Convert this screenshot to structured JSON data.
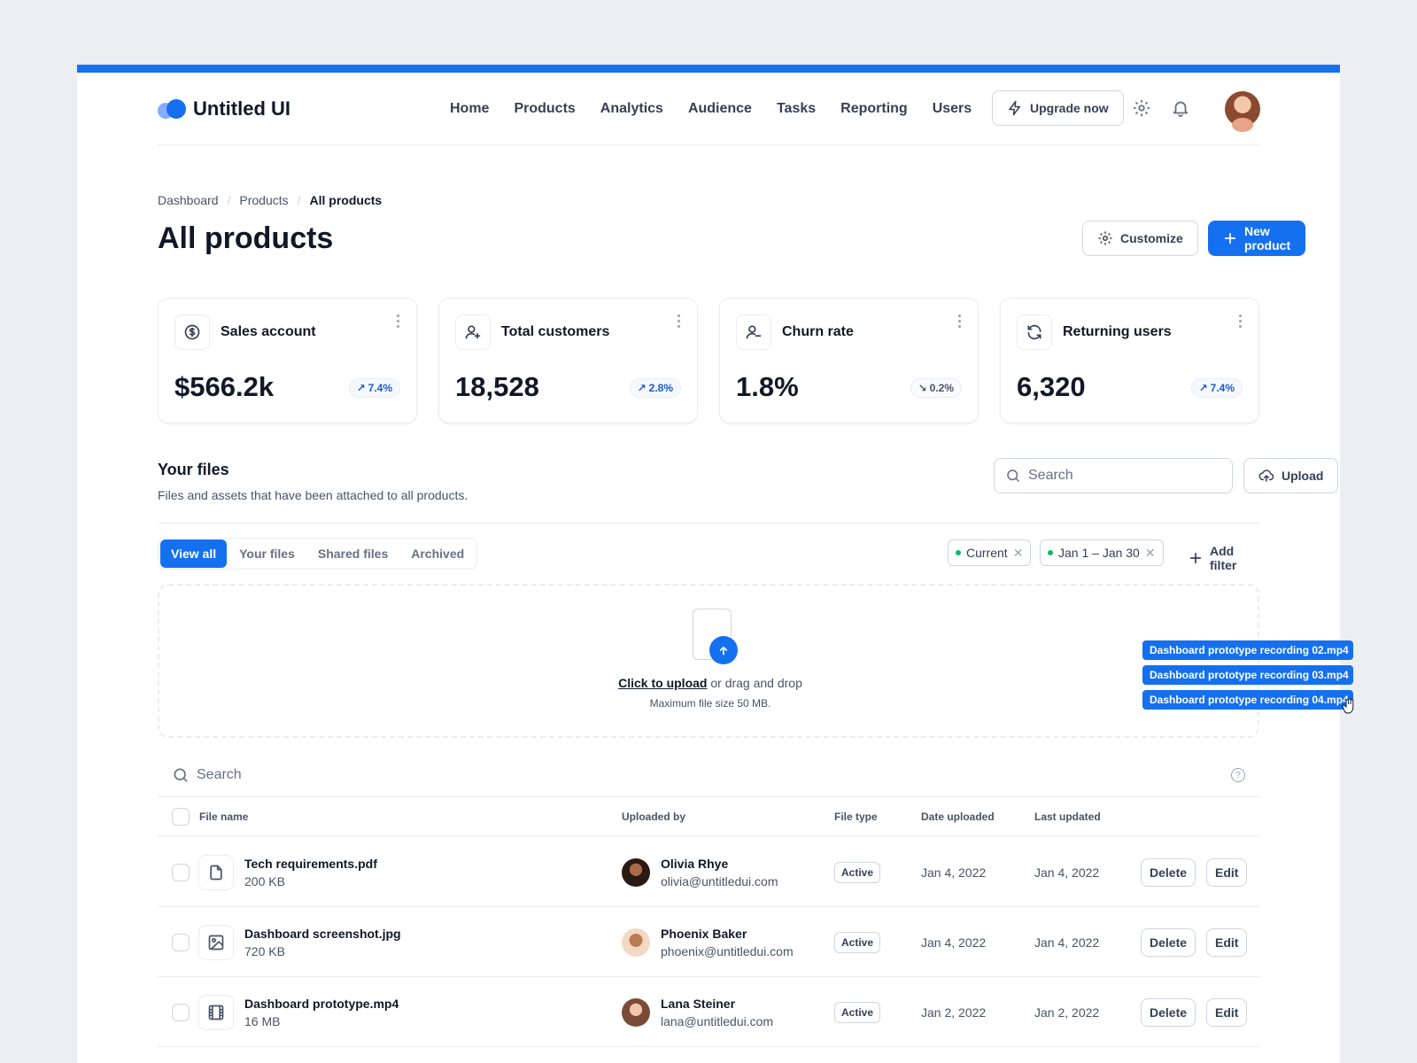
{
  "app": {
    "name": "Untitled UI"
  },
  "nav": {
    "links": [
      "Home",
      "Products",
      "Analytics",
      "Audience",
      "Tasks",
      "Reporting",
      "Users"
    ],
    "upgrade_label": "Upgrade now"
  },
  "breadcrumb": [
    "Dashboard",
    "Products",
    "All products"
  ],
  "page": {
    "title": "All products",
    "customize_label": "Customize",
    "new_product_label": "New product"
  },
  "stats": [
    {
      "label": "Sales account",
      "value": "$566.2k",
      "change": "7.4%",
      "trend": "up",
      "icon": "currency-dollar-icon"
    },
    {
      "label": "Total customers",
      "value": "18,528",
      "change": "2.8%",
      "trend": "up",
      "icon": "user-plus-icon"
    },
    {
      "label": "Churn rate",
      "value": "1.8%",
      "change": "0.2%",
      "trend": "down",
      "icon": "user-minus-icon"
    },
    {
      "label": "Returning users",
      "value": "6,320",
      "change": "7.4%",
      "trend": "up",
      "icon": "refresh-icon"
    }
  ],
  "files": {
    "title": "Your files",
    "subtitle": "Files and assets that have been attached to all products.",
    "search_placeholder": "Search",
    "upload_label": "Upload",
    "tabs": [
      "View all",
      "Your files",
      "Shared files",
      "Archived"
    ],
    "active_tab": "View all",
    "filters": [
      "Current",
      "Jan 1 – Jan 30"
    ],
    "add_filter_label": "Add filter",
    "dropzone": {
      "link": "Click to upload",
      "text": " or drag and drop",
      "sub": "Maximum file size 50 MB."
    },
    "dragging": [
      "Dashboard prototype recording 02.mp4",
      "Dashboard prototype recording 03.mp4",
      "Dashboard prototype recording 04.mp4"
    ]
  },
  "table": {
    "search_placeholder": "Search",
    "headers": [
      "File name",
      "Uploaded by",
      "File type",
      "Date uploaded",
      "Last updated"
    ],
    "delete_label": "Delete",
    "edit_label": "Edit",
    "rows": [
      {
        "name": "Tech requirements.pdf",
        "size": "200 KB",
        "icon": "file-icon",
        "user": "Olivia Rhye",
        "email": "olivia@untitledui.com",
        "type": "Active",
        "uploaded": "Jan 4, 2022",
        "updated": "Jan 4, 2022"
      },
      {
        "name": "Dashboard screenshot.jpg",
        "size": "720 KB",
        "icon": "image-icon",
        "user": "Phoenix Baker",
        "email": "phoenix@untitledui.com",
        "type": "Active",
        "uploaded": "Jan 4, 2022",
        "updated": "Jan 4, 2022"
      },
      {
        "name": "Dashboard prototype.mp4",
        "size": "16 MB",
        "icon": "film-icon",
        "user": "Lana Steiner",
        "email": "lana@untitledui.com",
        "type": "Active",
        "uploaded": "Jan 2, 2022",
        "updated": "Jan 2, 2022"
      }
    ]
  },
  "colors": {
    "accent": "#1570ef",
    "success": "#12b76a"
  }
}
